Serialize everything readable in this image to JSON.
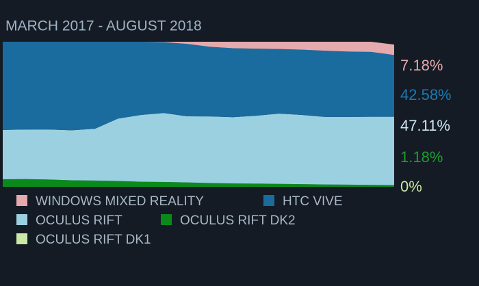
{
  "chart_data": {
    "type": "stacked-area",
    "title": "MARCH 2017 - AUGUST 2018",
    "categories": [
      null,
      null,
      null,
      null,
      null,
      null,
      null,
      null,
      null,
      null,
      null,
      null,
      null,
      null,
      null,
      null,
      null,
      null
    ],
    "ylim": [
      0,
      100
    ],
    "series": [
      {
        "name": "WINDOWS MIXED REALITY",
        "color": "#e4aaad",
        "values": [
          0,
          0,
          0,
          0,
          0,
          0,
          0,
          0.3,
          1.5,
          3.5,
          4.5,
          4.8,
          5.0,
          5.5,
          6.2,
          6.8,
          7.0,
          7.18
        ],
        "value_labels": [
          null,
          null,
          null,
          null,
          null,
          null,
          null,
          null,
          null,
          null,
          null,
          null,
          null,
          null,
          null,
          null,
          null,
          "7.18%"
        ]
      },
      {
        "name": "HTC VIVE",
        "color": "#1a6c9f",
        "values": [
          60.8,
          60.5,
          60.5,
          61.0,
          60.0,
          53.0,
          50.5,
          48.8,
          49.9,
          48.0,
          47.5,
          46.2,
          44.5,
          45.0,
          45.6,
          45.0,
          44.7,
          42.58
        ],
        "value_labels": [
          null,
          null,
          null,
          null,
          null,
          null,
          null,
          null,
          null,
          null,
          null,
          null,
          null,
          null,
          null,
          null,
          null,
          "42.58%"
        ]
      },
      {
        "name": "OCULUS RIFT",
        "color": "#9bd0e1",
        "values": [
          34.0,
          34.2,
          34.5,
          34.5,
          35.7,
          43.0,
          46.0,
          47.6,
          45.6,
          45.9,
          45.7,
          46.8,
          48.5,
          47.7,
          46.6,
          46.7,
          47.0,
          47.11
        ],
        "value_labels": [
          null,
          null,
          null,
          null,
          null,
          null,
          null,
          null,
          null,
          null,
          null,
          null,
          null,
          null,
          null,
          null,
          null,
          "47.11%"
        ]
      },
      {
        "name": "OCULUS RIFT DK2",
        "color": "#0b8a1c",
        "values": [
          5.2,
          5.3,
          5.0,
          4.5,
          4.3,
          4.0,
          3.5,
          3.3,
          3.0,
          2.6,
          2.3,
          2.2,
          2.0,
          1.8,
          1.6,
          1.5,
          1.3,
          1.18
        ],
        "value_labels": [
          null,
          null,
          null,
          null,
          null,
          null,
          null,
          null,
          null,
          null,
          null,
          null,
          null,
          null,
          null,
          null,
          null,
          "1.18%"
        ]
      },
      {
        "name": "OCULUS RIFT DK1",
        "color": "#cbe8a6",
        "values": [
          0,
          0,
          0,
          0,
          0,
          0,
          0,
          0,
          0,
          0,
          0,
          0,
          0,
          0,
          0,
          0,
          0,
          0
        ],
        "value_labels": [
          null,
          null,
          null,
          null,
          null,
          null,
          null,
          null,
          null,
          null,
          null,
          null,
          null,
          null,
          null,
          null,
          null,
          "0%"
        ]
      }
    ]
  }
}
